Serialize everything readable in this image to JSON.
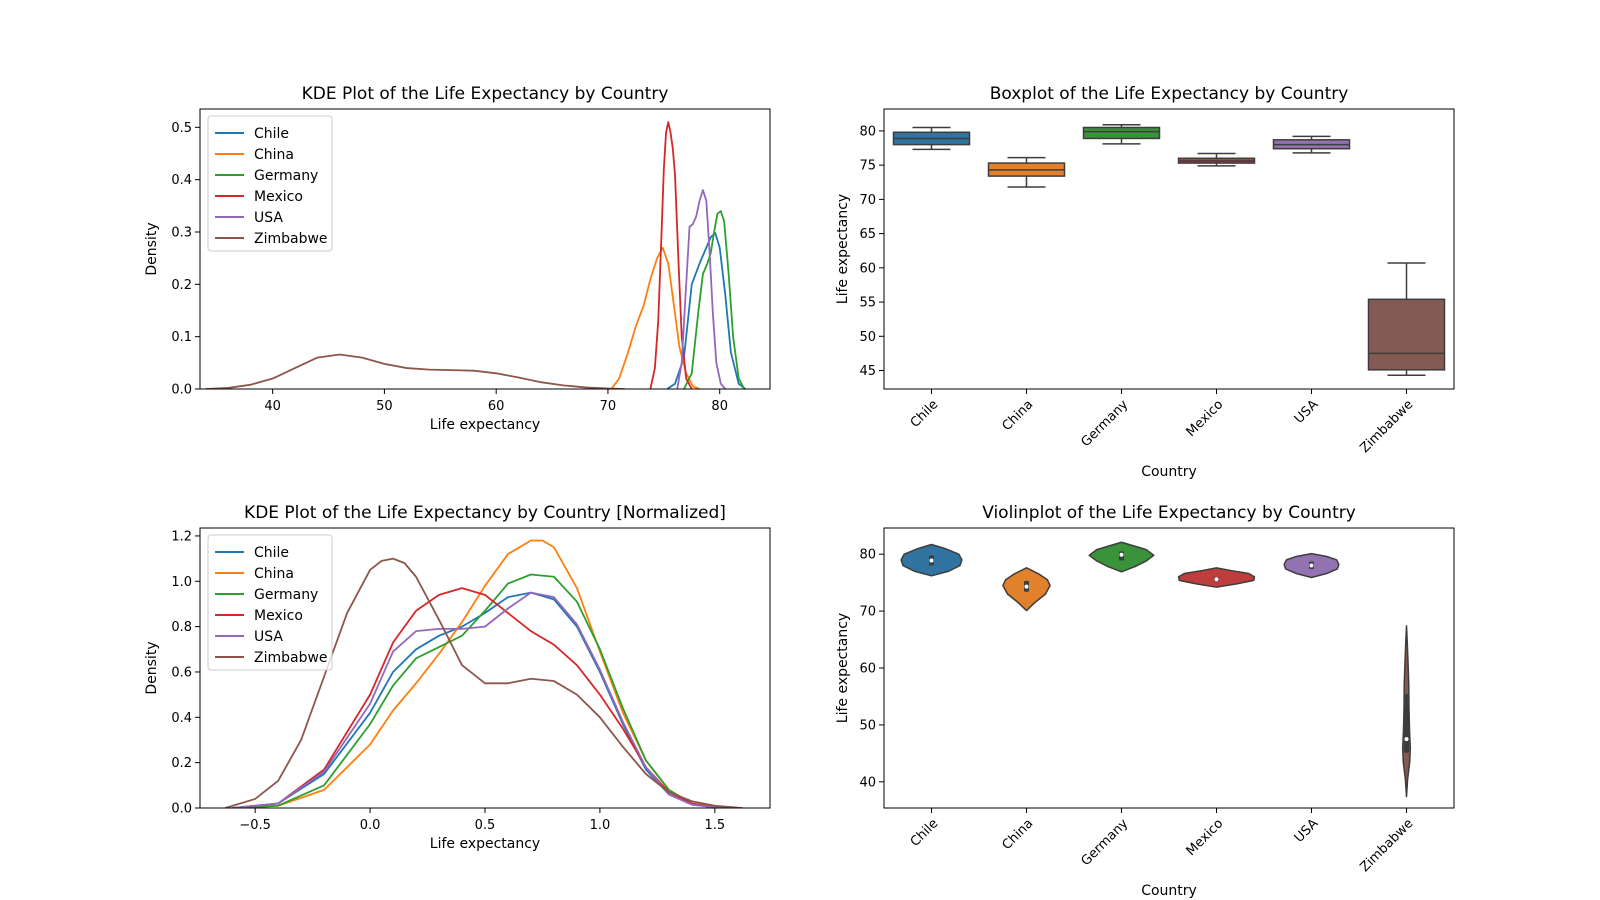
{
  "colors": {
    "Chile": "#1f77b4",
    "China": "#ff7f0e",
    "Germany": "#2ca02c",
    "Mexico": "#d62728",
    "USA": "#9467bd",
    "Zimbabwe": "#8c564b"
  },
  "box_colors": {
    "Chile": "#3274a1",
    "China": "#e1812c",
    "Germany": "#3a923a",
    "Mexico": "#c03d3e",
    "USA": "#9372b2",
    "Zimbabwe": "#845b53"
  },
  "chart_data": [
    {
      "type": "line",
      "title": "KDE Plot of the Life Expectancy by Country",
      "xlabel": "Life expectancy",
      "ylabel": "Density",
      "xlim": [
        33.5,
        84.5
      ],
      "ylim": [
        0,
        0.535
      ],
      "xticks": [
        40,
        50,
        60,
        70,
        80
      ],
      "yticks": [
        0.0,
        0.1,
        0.2,
        0.3,
        0.4,
        0.5
      ],
      "ytick_decimals": 1,
      "legend": "top-left",
      "grid": false,
      "series": [
        {
          "name": "Chile",
          "x": [
            75.3,
            76.0,
            76.8,
            77.5,
            78.2,
            78.8,
            79.2,
            79.6,
            80.0,
            80.5,
            81.0,
            81.7,
            82.3
          ],
          "y": [
            0.0,
            0.01,
            0.06,
            0.2,
            0.24,
            0.27,
            0.29,
            0.298,
            0.27,
            0.18,
            0.07,
            0.01,
            0.0
          ]
        },
        {
          "name": "China",
          "x": [
            70.3,
            71.0,
            71.8,
            72.5,
            73.2,
            73.8,
            74.4,
            74.9,
            75.4,
            75.9,
            76.4,
            77.0,
            77.6,
            78.2
          ],
          "y": [
            0.0,
            0.02,
            0.07,
            0.12,
            0.16,
            0.21,
            0.25,
            0.27,
            0.24,
            0.16,
            0.08,
            0.03,
            0.005,
            0.0
          ]
        },
        {
          "name": "Germany",
          "x": [
            76.8,
            77.5,
            78.1,
            78.5,
            78.9,
            79.2,
            79.5,
            79.8,
            80.1,
            80.4,
            80.8,
            81.2,
            81.7,
            82.2
          ],
          "y": [
            0.0,
            0.03,
            0.15,
            0.22,
            0.24,
            0.26,
            0.3,
            0.335,
            0.34,
            0.32,
            0.22,
            0.1,
            0.02,
            0.0
          ]
        },
        {
          "name": "Mexico",
          "x": [
            73.8,
            74.2,
            74.5,
            74.8,
            75.0,
            75.2,
            75.4,
            75.6,
            75.8,
            76.0,
            76.3,
            76.6,
            77.0,
            77.5
          ],
          "y": [
            0.0,
            0.04,
            0.13,
            0.3,
            0.42,
            0.49,
            0.51,
            0.49,
            0.46,
            0.41,
            0.25,
            0.1,
            0.02,
            0.0
          ]
        },
        {
          "name": "USA",
          "x": [
            76.2,
            76.6,
            77.0,
            77.3,
            77.6,
            77.9,
            78.2,
            78.5,
            78.8,
            79.1,
            79.4,
            79.7,
            80.1,
            80.5
          ],
          "y": [
            0.0,
            0.05,
            0.2,
            0.31,
            0.315,
            0.33,
            0.36,
            0.38,
            0.36,
            0.26,
            0.14,
            0.05,
            0.01,
            0.0
          ]
        },
        {
          "name": "Zimbabwe",
          "x": [
            34.0,
            36.0,
            38.0,
            40.0,
            42.0,
            44.0,
            46.0,
            48.0,
            50.0,
            52.0,
            54.0,
            56.0,
            58.0,
            60.0,
            62.0,
            64.0,
            66.0,
            68.0,
            70.0,
            71.5
          ],
          "y": [
            0.0,
            0.002,
            0.008,
            0.02,
            0.04,
            0.06,
            0.066,
            0.06,
            0.048,
            0.04,
            0.037,
            0.036,
            0.035,
            0.03,
            0.022,
            0.013,
            0.007,
            0.003,
            0.001,
            0.0
          ]
        }
      ]
    },
    {
      "type": "box",
      "title": "Boxplot of the Life Expectancy by Country",
      "xlabel": "Country",
      "ylabel": "Life expectancy",
      "ylim": [
        42.3,
        83.2
      ],
      "yticks": [
        45,
        50,
        55,
        60,
        65,
        70,
        75,
        80
      ],
      "ytick_decimals": 0,
      "categories": [
        "Chile",
        "China",
        "Germany",
        "Mexico",
        "USA",
        "Zimbabwe"
      ],
      "boxes": [
        {
          "min": 77.3,
          "q1": 78.0,
          "median": 78.9,
          "q3": 79.8,
          "max": 80.5
        },
        {
          "min": 71.8,
          "q1": 73.4,
          "median": 74.3,
          "q3": 75.3,
          "max": 76.1
        },
        {
          "min": 78.1,
          "q1": 78.9,
          "median": 79.9,
          "q3": 80.5,
          "max": 80.9
        },
        {
          "min": 74.9,
          "q1": 75.3,
          "median": 75.6,
          "q3": 76.0,
          "max": 76.7
        },
        {
          "min": 76.8,
          "q1": 77.4,
          "median": 78.0,
          "q3": 78.7,
          "max": 79.2
        },
        {
          "min": 44.3,
          "q1": 45.1,
          "median": 47.5,
          "q3": 55.4,
          "max": 60.7
        }
      ]
    },
    {
      "type": "line",
      "title": "KDE Plot of the Life Expectancy by Country [Normalized]",
      "xlabel": "Life expectancy",
      "ylabel": "Density",
      "xlim": [
        -0.74,
        1.74
      ],
      "ylim": [
        0,
        1.235
      ],
      "xticks": [
        -0.5,
        0.0,
        0.5,
        1.0,
        1.5
      ],
      "yticks": [
        0.0,
        0.2,
        0.4,
        0.6,
        0.8,
        1.0,
        1.2
      ],
      "ytick_decimals": 1,
      "legend": "top-left",
      "grid": false,
      "series": [
        {
          "name": "Chile",
          "x": [
            -0.6,
            -0.4,
            -0.2,
            0.0,
            0.1,
            0.2,
            0.3,
            0.4,
            0.5,
            0.6,
            0.7,
            0.8,
            0.9,
            1.0,
            1.1,
            1.2,
            1.3,
            1.4,
            1.5,
            1.6
          ],
          "y": [
            0.0,
            0.02,
            0.15,
            0.42,
            0.6,
            0.7,
            0.76,
            0.8,
            0.86,
            0.93,
            0.95,
            0.92,
            0.8,
            0.6,
            0.37,
            0.17,
            0.06,
            0.015,
            0.003,
            0.0
          ]
        },
        {
          "name": "China",
          "x": [
            -0.6,
            -0.4,
            -0.2,
            0.0,
            0.1,
            0.2,
            0.3,
            0.4,
            0.5,
            0.6,
            0.7,
            0.75,
            0.8,
            0.9,
            1.0,
            1.1,
            1.2,
            1.3,
            1.4,
            1.5,
            1.6
          ],
          "y": [
            0.0,
            0.01,
            0.08,
            0.28,
            0.43,
            0.55,
            0.68,
            0.82,
            0.98,
            1.12,
            1.18,
            1.18,
            1.15,
            0.97,
            0.69,
            0.42,
            0.21,
            0.08,
            0.02,
            0.004,
            0.0
          ]
        },
        {
          "name": "Germany",
          "x": [
            -0.6,
            -0.4,
            -0.2,
            0.0,
            0.1,
            0.2,
            0.3,
            0.4,
            0.5,
            0.6,
            0.7,
            0.8,
            0.9,
            1.0,
            1.1,
            1.2,
            1.3,
            1.4,
            1.5,
            1.6
          ],
          "y": [
            0.0,
            0.01,
            0.1,
            0.37,
            0.54,
            0.66,
            0.71,
            0.76,
            0.87,
            0.99,
            1.03,
            1.02,
            0.91,
            0.7,
            0.44,
            0.21,
            0.08,
            0.02,
            0.004,
            0.0
          ]
        },
        {
          "name": "Mexico",
          "x": [
            -0.6,
            -0.4,
            -0.2,
            0.0,
            0.1,
            0.2,
            0.3,
            0.4,
            0.5,
            0.6,
            0.7,
            0.8,
            0.9,
            1.0,
            1.1,
            1.2,
            1.3,
            1.4,
            1.5,
            1.6
          ],
          "y": [
            0.0,
            0.02,
            0.17,
            0.5,
            0.73,
            0.87,
            0.94,
            0.97,
            0.94,
            0.86,
            0.78,
            0.72,
            0.63,
            0.5,
            0.35,
            0.18,
            0.07,
            0.02,
            0.004,
            0.0
          ]
        },
        {
          "name": "USA",
          "x": [
            -0.6,
            -0.4,
            -0.2,
            0.0,
            0.1,
            0.2,
            0.3,
            0.4,
            0.5,
            0.6,
            0.7,
            0.8,
            0.9,
            1.0,
            1.1,
            1.2,
            1.3,
            1.4,
            1.5,
            1.6
          ],
          "y": [
            0.0,
            0.02,
            0.16,
            0.46,
            0.69,
            0.78,
            0.79,
            0.79,
            0.8,
            0.88,
            0.95,
            0.93,
            0.81,
            0.61,
            0.38,
            0.18,
            0.06,
            0.015,
            0.003,
            0.0
          ]
        },
        {
          "name": "Zimbabwe",
          "x": [
            -0.63,
            -0.5,
            -0.4,
            -0.3,
            -0.2,
            -0.1,
            0.0,
            0.05,
            0.1,
            0.15,
            0.2,
            0.3,
            0.4,
            0.5,
            0.6,
            0.7,
            0.8,
            0.9,
            1.0,
            1.1,
            1.2,
            1.3,
            1.4,
            1.5,
            1.62
          ],
          "y": [
            0.0,
            0.04,
            0.12,
            0.3,
            0.58,
            0.86,
            1.05,
            1.09,
            1.1,
            1.08,
            1.02,
            0.83,
            0.63,
            0.55,
            0.55,
            0.57,
            0.56,
            0.5,
            0.4,
            0.27,
            0.15,
            0.07,
            0.03,
            0.01,
            0.0
          ]
        }
      ]
    },
    {
      "type": "violin",
      "title": "Violinplot of the Life Expectancy by Country",
      "xlabel": "Country",
      "ylabel": "Life expectancy",
      "ylim": [
        35.4,
        84.6
      ],
      "yticks": [
        40,
        50,
        60,
        70,
        80
      ],
      "ytick_decimals": 0,
      "categories": [
        "Chile",
        "China",
        "Germany",
        "Mexico",
        "USA",
        "Zimbabwe"
      ],
      "violins": [
        {
          "profile": [
            [
              76.2,
              0.0
            ],
            [
              77.0,
              0.45
            ],
            [
              78.0,
              0.75
            ],
            [
              79.0,
              0.8
            ],
            [
              80.0,
              0.72
            ],
            [
              81.0,
              0.35
            ],
            [
              81.7,
              0.0
            ]
          ],
          "q1": 78.0,
          "median": 78.9,
          "q3": 79.8
        },
        {
          "profile": [
            [
              70.1,
              0.0
            ],
            [
              71.5,
              0.22
            ],
            [
              73.0,
              0.5
            ],
            [
              74.5,
              0.62
            ],
            [
              75.5,
              0.55
            ],
            [
              76.5,
              0.33
            ],
            [
              77.6,
              0.0
            ]
          ],
          "q1": 73.4,
          "median": 74.3,
          "q3": 75.3
        },
        {
          "profile": [
            [
              76.9,
              0.0
            ],
            [
              77.8,
              0.35
            ],
            [
              78.8,
              0.65
            ],
            [
              79.8,
              0.85
            ],
            [
              80.8,
              0.65
            ],
            [
              81.5,
              0.3
            ],
            [
              82.1,
              0.0
            ]
          ],
          "q1": 78.9,
          "median": 79.9,
          "q3": 80.5
        },
        {
          "profile": [
            [
              74.2,
              0.0
            ],
            [
              74.8,
              0.55
            ],
            [
              75.4,
              0.98
            ],
            [
              76.0,
              1.0
            ],
            [
              76.6,
              0.85
            ],
            [
              77.1,
              0.4
            ],
            [
              77.6,
              0.0
            ]
          ],
          "q1": 75.3,
          "median": 75.6,
          "q3": 76.0
        },
        {
          "profile": [
            [
              75.9,
              0.0
            ],
            [
              76.6,
              0.4
            ],
            [
              77.4,
              0.68
            ],
            [
              78.2,
              0.72
            ],
            [
              79.0,
              0.66
            ],
            [
              79.6,
              0.4
            ],
            [
              80.1,
              0.0
            ]
          ],
          "q1": 77.4,
          "median": 78.0,
          "q3": 78.7
        },
        {
          "profile": [
            [
              37.4,
              0.0
            ],
            [
              40.5,
              0.03
            ],
            [
              43.5,
              0.085
            ],
            [
              46.0,
              0.1
            ],
            [
              49.0,
              0.08
            ],
            [
              53.0,
              0.065
            ],
            [
              57.0,
              0.06
            ],
            [
              61.0,
              0.04
            ],
            [
              64.5,
              0.02
            ],
            [
              67.4,
              0.0
            ]
          ],
          "q1": 45.1,
          "median": 47.5,
          "q3": 55.4
        }
      ]
    }
  ]
}
